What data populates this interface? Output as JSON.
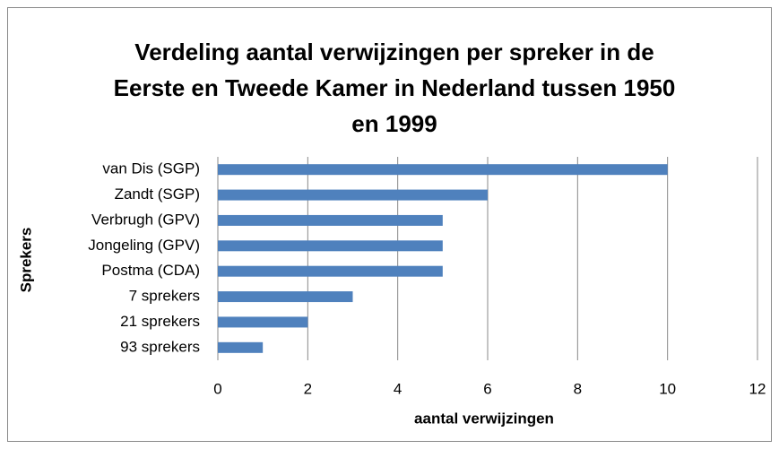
{
  "chart_data": {
    "type": "bar",
    "orientation": "horizontal",
    "title": "Verdeling aantal verwijzingen per spreker in de Eerste en Tweede Kamer in Nederland tussen 1950 en 1999",
    "x_label": "aantal verwijzingen",
    "y_label": "Sprekers",
    "categories": [
      "van Dis (SGP)",
      "Zandt (SGP)",
      "Verbrugh (GPV)",
      "Jongeling (GPV)",
      "Postma (CDA)",
      "7 sprekers",
      "21 sprekers",
      "93 sprekers"
    ],
    "values": [
      10,
      6,
      5,
      5,
      5,
      3,
      2,
      1
    ],
    "color": "#4f81bd",
    "xlim": [
      0,
      12
    ],
    "xticks": [
      0,
      2,
      4,
      6,
      8,
      10,
      12
    ],
    "grid": true
  }
}
